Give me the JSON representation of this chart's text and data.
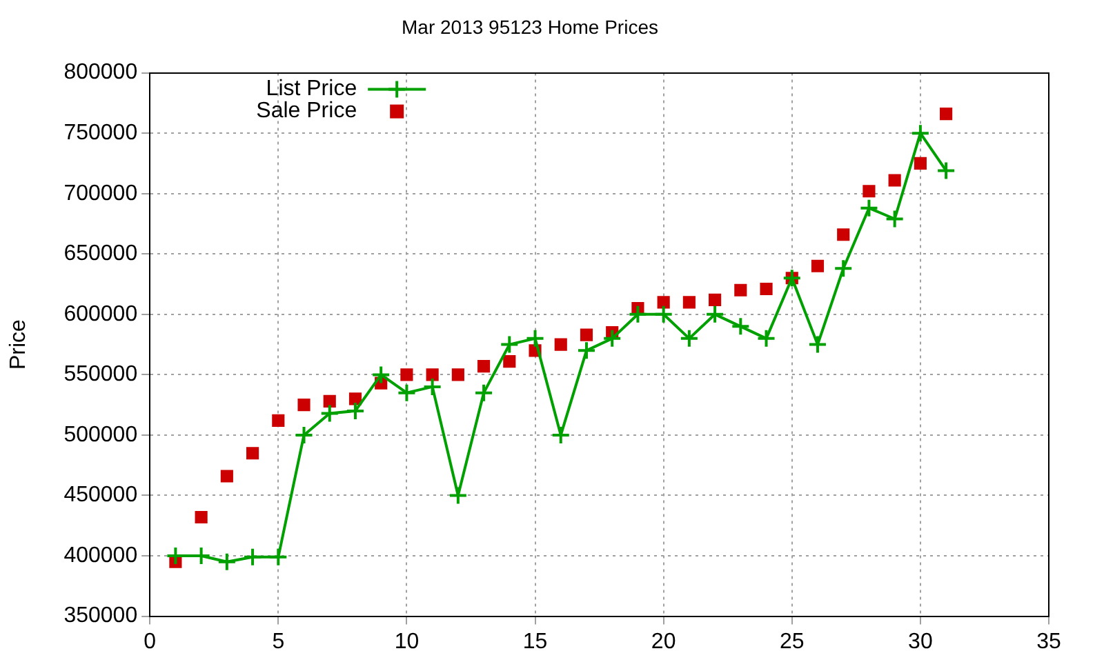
{
  "chart_data": {
    "type": "line",
    "title": "Mar 2013 95123 Home Prices",
    "ylabel": "Price",
    "x": [
      1,
      2,
      3,
      4,
      5,
      6,
      7,
      8,
      9,
      10,
      11,
      12,
      13,
      14,
      15,
      16,
      17,
      18,
      19,
      20,
      21,
      22,
      23,
      24,
      25,
      26,
      27,
      28,
      29,
      30,
      31
    ],
    "series": [
      {
        "name": "List Price",
        "type": "line",
        "color": "#00a000",
        "marker": "cross",
        "values": [
          400000,
          400000,
          395000,
          399000,
          399000,
          500000,
          518000,
          520000,
          550000,
          535000,
          540000,
          450000,
          535000,
          575000,
          580000,
          500000,
          570000,
          580000,
          600000,
          600000,
          580000,
          600000,
          590000,
          580000,
          630000,
          575000,
          638000,
          688000,
          679000,
          750000,
          719000
        ]
      },
      {
        "name": "Sale Price",
        "type": "scatter",
        "color": "#cc0000",
        "marker": "square",
        "values": [
          395000,
          432000,
          466000,
          485000,
          512000,
          525000,
          528000,
          530000,
          543000,
          550000,
          550000,
          550000,
          557000,
          561000,
          570000,
          575000,
          583000,
          585000,
          605000,
          610000,
          610000,
          612000,
          620000,
          621000,
          630000,
          640000,
          666000,
          702000,
          711000,
          725000,
          766000
        ]
      }
    ],
    "xlim": [
      0,
      35
    ],
    "xticks": [
      0,
      5,
      10,
      15,
      20,
      25,
      30,
      35
    ],
    "ylim": [
      350000,
      800000
    ],
    "yticks": [
      350000,
      400000,
      450000,
      500000,
      550000,
      600000,
      650000,
      700000,
      750000,
      800000
    ],
    "grid": true,
    "legend": "top left"
  }
}
